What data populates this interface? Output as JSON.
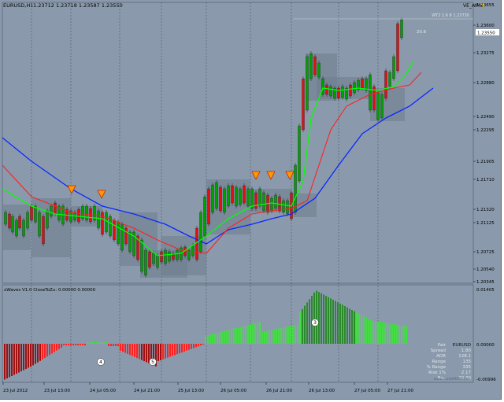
{
  "window": {
    "title": "EURUSD,H1",
    "ohlc": "1.23712 1.23718 1.23587 1.23550",
    "indicator_label": "VE_AIMS",
    "price_badge": "1.23550",
    "pivot_label": "WT2 1.6 8 1.23730",
    "small_number": "20.6"
  },
  "price_axis": {
    "ticks": [
      "1.23655",
      "1.23600",
      "1.23275",
      "1.22880",
      "1.22490",
      "1.22295",
      "1.21905",
      "1.21710",
      "1.21320",
      "1.21125",
      "1.20725",
      "1.20540",
      "1.20345"
    ]
  },
  "indicator_window": {
    "title": "xWaves V1.0 CloseToZu: 0.00000 0.00000",
    "ticks": [
      "0.01405",
      "0.00000",
      "-0.00996"
    ],
    "wave_labels": [
      "4",
      "5",
      "3"
    ]
  },
  "time_axis": {
    "labels": [
      "23 Jul 2012",
      "23 Jul 13:00",
      "24 Jul 05:00",
      "24 Jul 21:00",
      "25 Jul 13:00",
      "26 Jul 05:00",
      "26 Jul 21:00",
      "26 Jul 13:00",
      "27 Jul 05:00",
      "27 Jul 21:00"
    ]
  },
  "stats_panel": {
    "rows": [
      {
        "label": "Pair",
        "value": "EURUSD"
      },
      {
        "label": "Spread",
        "value": "1.80"
      },
      {
        "label": "ADR",
        "value": "128.1"
      },
      {
        "label": "Range",
        "value": "135"
      },
      {
        "label": "% Range",
        "value": "335"
      },
      {
        "label": "Risk 1%",
        "value": "2.17"
      },
      {
        "label": "Box",
        "value": "72.30"
      }
    ],
    "watermark": "www.TradeMAS.com"
  },
  "colors": {
    "background": "#8a9aac",
    "bull": "#00a000",
    "bear": "#e01010",
    "ma_fast": "#00ff00",
    "ma_mid": "#ff2020",
    "ma_slow": "#0a28ff",
    "bull_hist": "#44dd44",
    "bear_hist": "#ff2020"
  }
}
